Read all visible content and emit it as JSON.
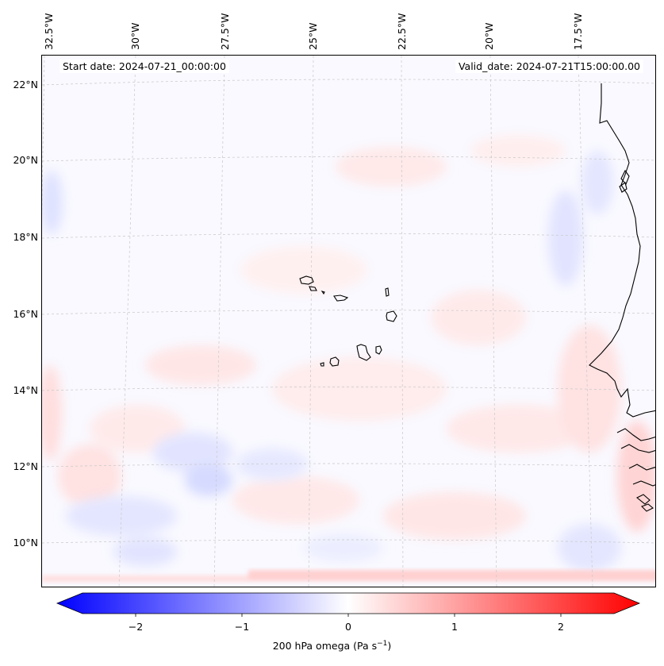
{
  "header": {
    "start_date": "Start date: 2024-07-21_00:00:00",
    "valid_date": "Valid_date: 2024-07-21T15:00:00.00"
  },
  "axes": {
    "lon_labels": [
      "32.5°W",
      "30°W",
      "27.5°W",
      "25°W",
      "22.5°W",
      "20°W",
      "17.5°W"
    ],
    "lat_labels": [
      "22°N",
      "20°N",
      "18°N",
      "16°N",
      "14°N",
      "12°N",
      "10°N"
    ],
    "lon_values": [
      -32.5,
      -30,
      -27.5,
      -25,
      -22.5,
      -20,
      -17.5
    ],
    "lat_values": [
      22,
      20,
      18,
      16,
      14,
      12,
      10
    ]
  },
  "colorbar": {
    "label": "200 hPa omega (Pa s",
    "label_sup": "−1",
    "label_close": ")",
    "ticks": [
      "−2",
      "−1",
      "0",
      "1",
      "2"
    ],
    "tick_values": [
      -2,
      -1,
      0,
      1,
      2
    ],
    "range": [
      -2.6,
      2.6
    ],
    "colormap": "bwr",
    "low_color": "#0000ff",
    "mid_color": "#ffffff",
    "high_color": "#ff0000"
  },
  "map": {
    "field": "200 hPa omega",
    "features": [
      "Cape Verde islands",
      "West African coastline",
      "lat/lon gridlines"
    ],
    "gridline_color": "#c8c8c8"
  }
}
